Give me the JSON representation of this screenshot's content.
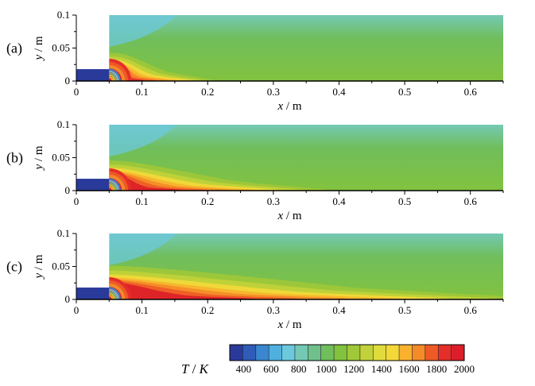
{
  "chart_data": {
    "type": "heatmap",
    "description_quantity": "temperature",
    "panels": [
      {
        "label": "(a)",
        "flame_length_m": 0.12,
        "xlabel": {
          "var": "x",
          "unit": "m"
        },
        "ylabel": {
          "var": "y",
          "unit": "m"
        },
        "xticks": [
          "0",
          "0.1",
          "0.2",
          "0.3",
          "0.4",
          "0.5",
          "0.6"
        ],
        "yticks": [
          "0",
          "0.05",
          "0.1"
        ],
        "xlim": [
          0,
          0.65
        ],
        "ylim": [
          0,
          0.1
        ]
      },
      {
        "label": "(b)",
        "flame_length_m": 0.25,
        "xlabel": {
          "var": "x",
          "unit": "m"
        },
        "ylabel": {
          "var": "y",
          "unit": "m"
        },
        "xticks": [
          "0",
          "0.1",
          "0.2",
          "0.3",
          "0.4",
          "0.5",
          "0.6"
        ],
        "yticks": [
          "0",
          "0.05",
          "0.1"
        ],
        "xlim": [
          0,
          0.65
        ],
        "ylim": [
          0,
          0.1
        ]
      },
      {
        "label": "(c)",
        "flame_length_m": 0.5,
        "xlabel": {
          "var": "x",
          "unit": "m"
        },
        "ylabel": {
          "var": "y",
          "unit": "m"
        },
        "xticks": [
          "0",
          "0.1",
          "0.2",
          "0.3",
          "0.4",
          "0.5",
          "0.6"
        ],
        "yticks": [
          "0",
          "0.05",
          "0.1"
        ],
        "xlim": [
          0,
          0.65
        ],
        "ylim": [
          0,
          0.1
        ]
      }
    ],
    "colorbar": {
      "title": {
        "var": "T",
        "unit": "K"
      },
      "min": 300,
      "max": 2000,
      "ticks": [
        "400",
        "600",
        "800",
        "1000",
        "1200",
        "1400",
        "1600",
        "1800",
        "2000"
      ],
      "levels": 18,
      "colors": [
        "#2a3a9a",
        "#2f5cb8",
        "#3a86d0",
        "#4fb0e0",
        "#6cc8dc",
        "#74c9b4",
        "#6fc08a",
        "#70be5c",
        "#82c23e",
        "#a0c838",
        "#c2d23a",
        "#e0dc3e",
        "#f4d83a",
        "#f8b22e",
        "#f48a28",
        "#ee5a26",
        "#e42e2a",
        "#dc1e2a"
      ]
    }
  }
}
